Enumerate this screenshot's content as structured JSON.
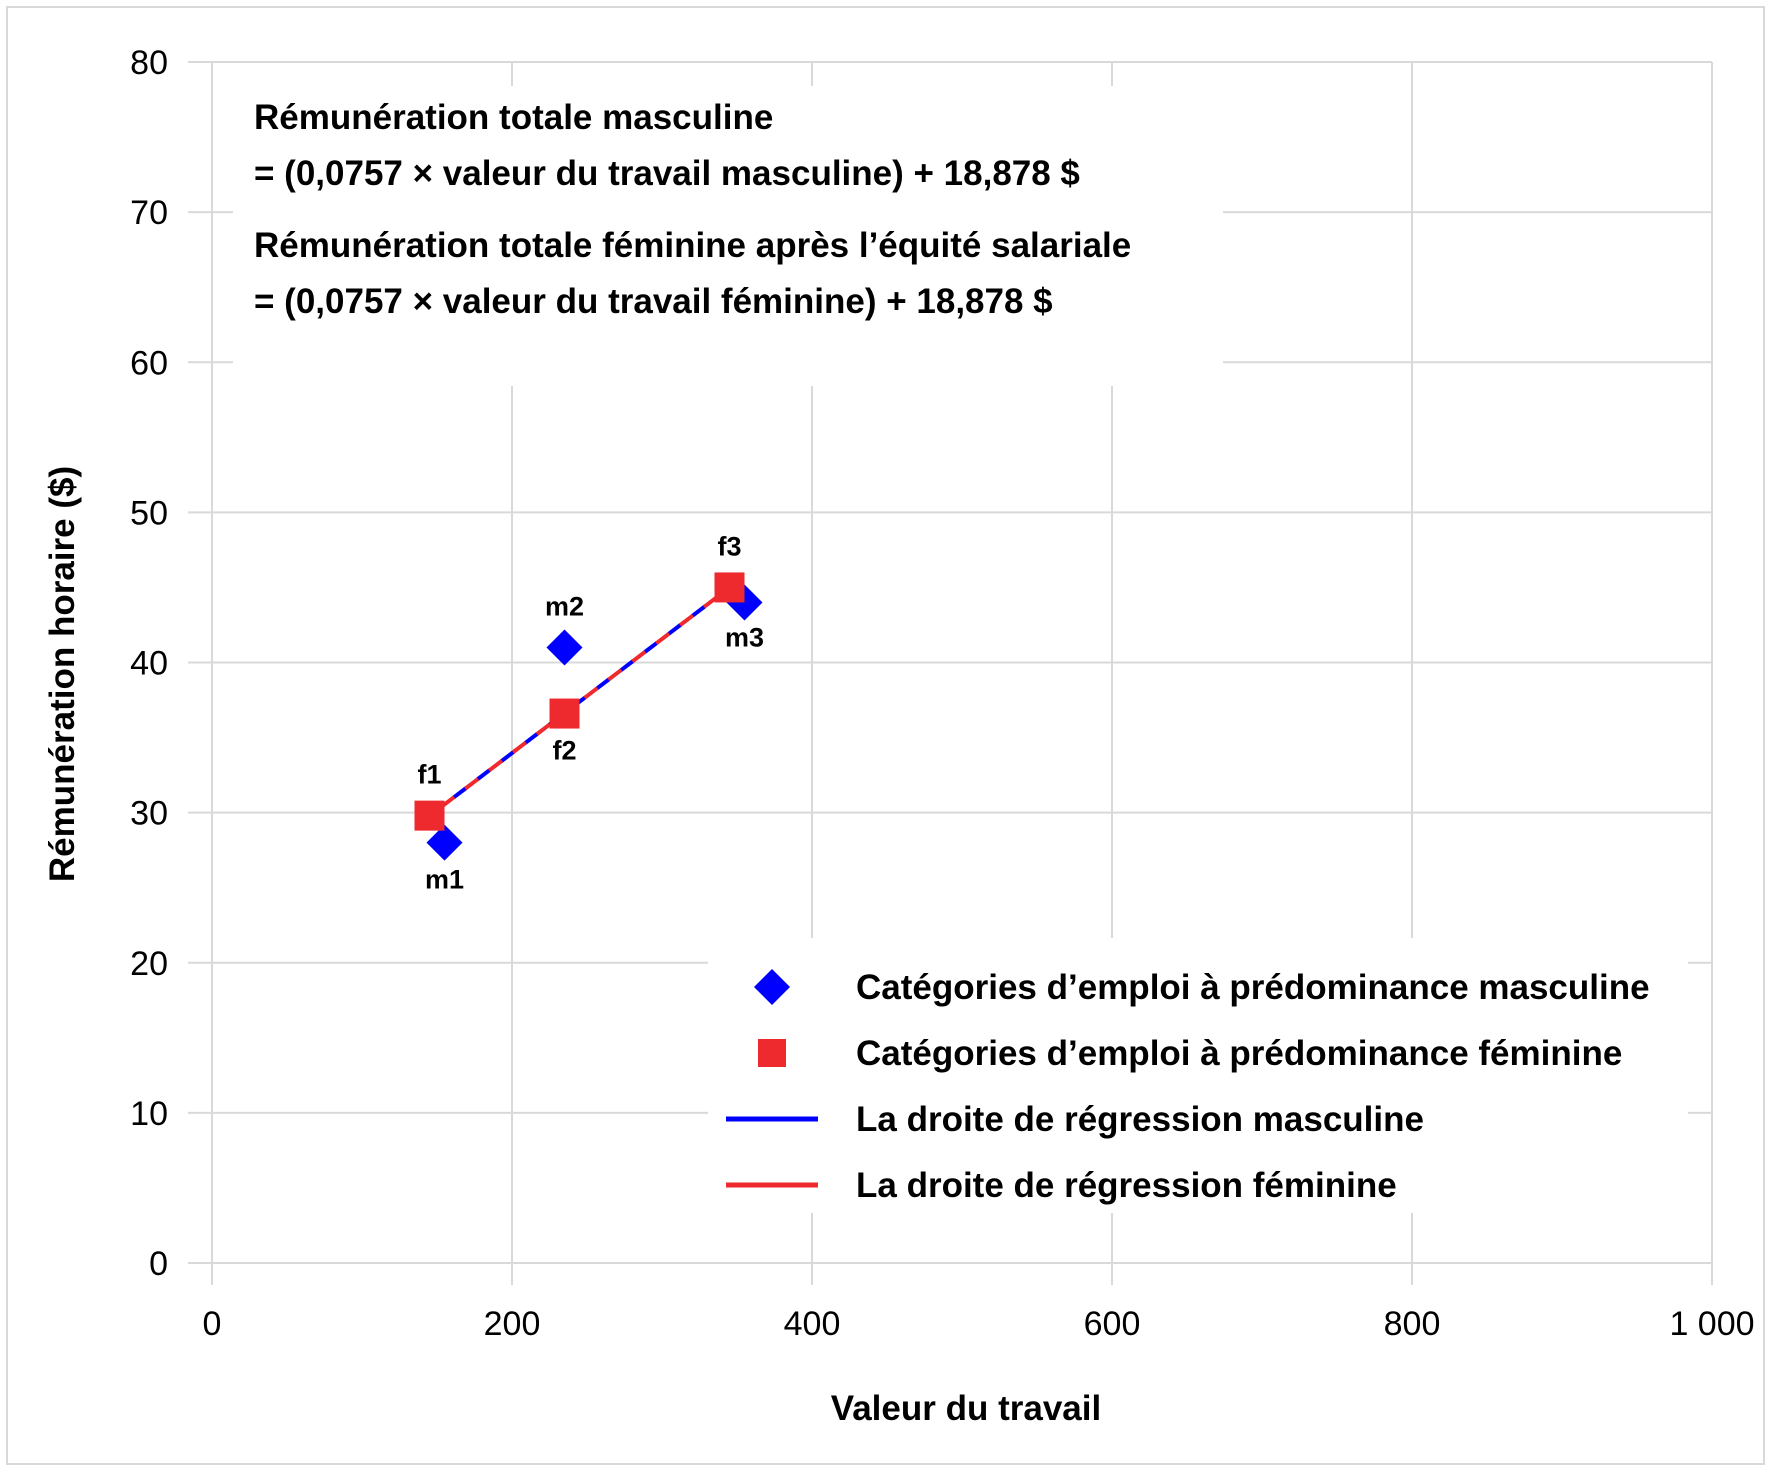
{
  "chart_data": {
    "type": "scatter",
    "xlabel": "Valeur du travail",
    "ylabel": "Rémunération horaire ($)",
    "xlim": [
      0,
      1000
    ],
    "ylim": [
      0,
      80
    ],
    "x_ticks": [
      {
        "value": 0,
        "label": "0"
      },
      {
        "value": 200,
        "label": "200"
      },
      {
        "value": 400,
        "label": "400"
      },
      {
        "value": 600,
        "label": "600"
      },
      {
        "value": 800,
        "label": "800"
      },
      {
        "value": 1000,
        "label": "1 000"
      }
    ],
    "y_ticks": [
      {
        "value": 0,
        "label": "0"
      },
      {
        "value": 10,
        "label": "10"
      },
      {
        "value": 20,
        "label": "20"
      },
      {
        "value": 30,
        "label": "30"
      },
      {
        "value": 40,
        "label": "40"
      },
      {
        "value": 50,
        "label": "50"
      },
      {
        "value": 60,
        "label": "60"
      },
      {
        "value": 70,
        "label": "70"
      },
      {
        "value": 80,
        "label": "80"
      }
    ],
    "grid": true,
    "series": [
      {
        "name": "Catégories d’emploi à prédominance masculine",
        "marker": "diamond",
        "color": "#0000ff",
        "points": [
          {
            "label": "m1",
            "x": 155,
            "y": 28
          },
          {
            "label": "m2",
            "x": 235,
            "y": 41
          },
          {
            "label": "m3",
            "x": 355,
            "y": 44
          }
        ]
      },
      {
        "name": "Catégories d’emploi à prédominance féminine",
        "marker": "square",
        "color": "#ee2a2f",
        "points": [
          {
            "label": "f1",
            "x": 145,
            "y": 29.8
          },
          {
            "label": "f2",
            "x": 235,
            "y": 36.6
          },
          {
            "label": "f3",
            "x": 345,
            "y": 45
          }
        ]
      }
    ],
    "regression_lines": [
      {
        "name": "La droite de régression masculine",
        "color": "#0000ff",
        "style": "dashed",
        "x_from": 145,
        "x_to": 345
      },
      {
        "name": "La droite de régression féminine",
        "color": "#ee2a2f",
        "style": "dashed",
        "x_from": 145,
        "x_to": 345
      }
    ],
    "annotations": [
      "Rémunération totale masculine",
      "= (0,0757 × valeur du travail masculine) + 18,878 $",
      "Rémunération totale féminine après l’équité salariale",
      "= (0,0757 × valeur du travail féminine) + 18,878 $"
    ],
    "legend_position": "bottom-right"
  }
}
